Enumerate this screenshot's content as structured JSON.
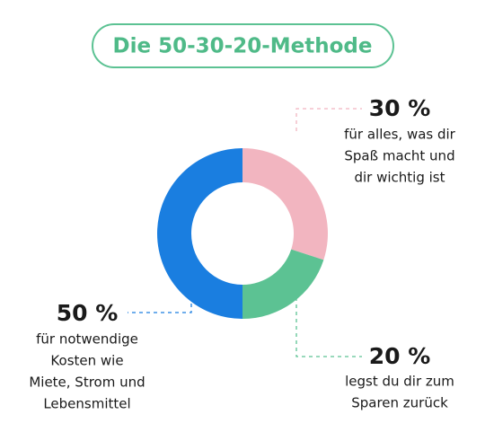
{
  "chart_data": {
    "type": "donut",
    "title": "Die 50-30-20-Methode",
    "categories": [
      [
        "für alles, was dir",
        "Spaß macht und",
        "dir wichtig ist"
      ],
      [
        "legst du dir zum",
        "Sparen zurück"
      ],
      [
        "für notwendige",
        "Kosten wie",
        "Miete, Strom und",
        "Lebensmittel"
      ]
    ],
    "values": [
      30,
      20,
      50
    ],
    "value_labels": [
      "30 %",
      "20 %",
      "50 %"
    ],
    "colors": [
      "#f2b5c0",
      "#5cc293",
      "#1a7ee0"
    ]
  }
}
